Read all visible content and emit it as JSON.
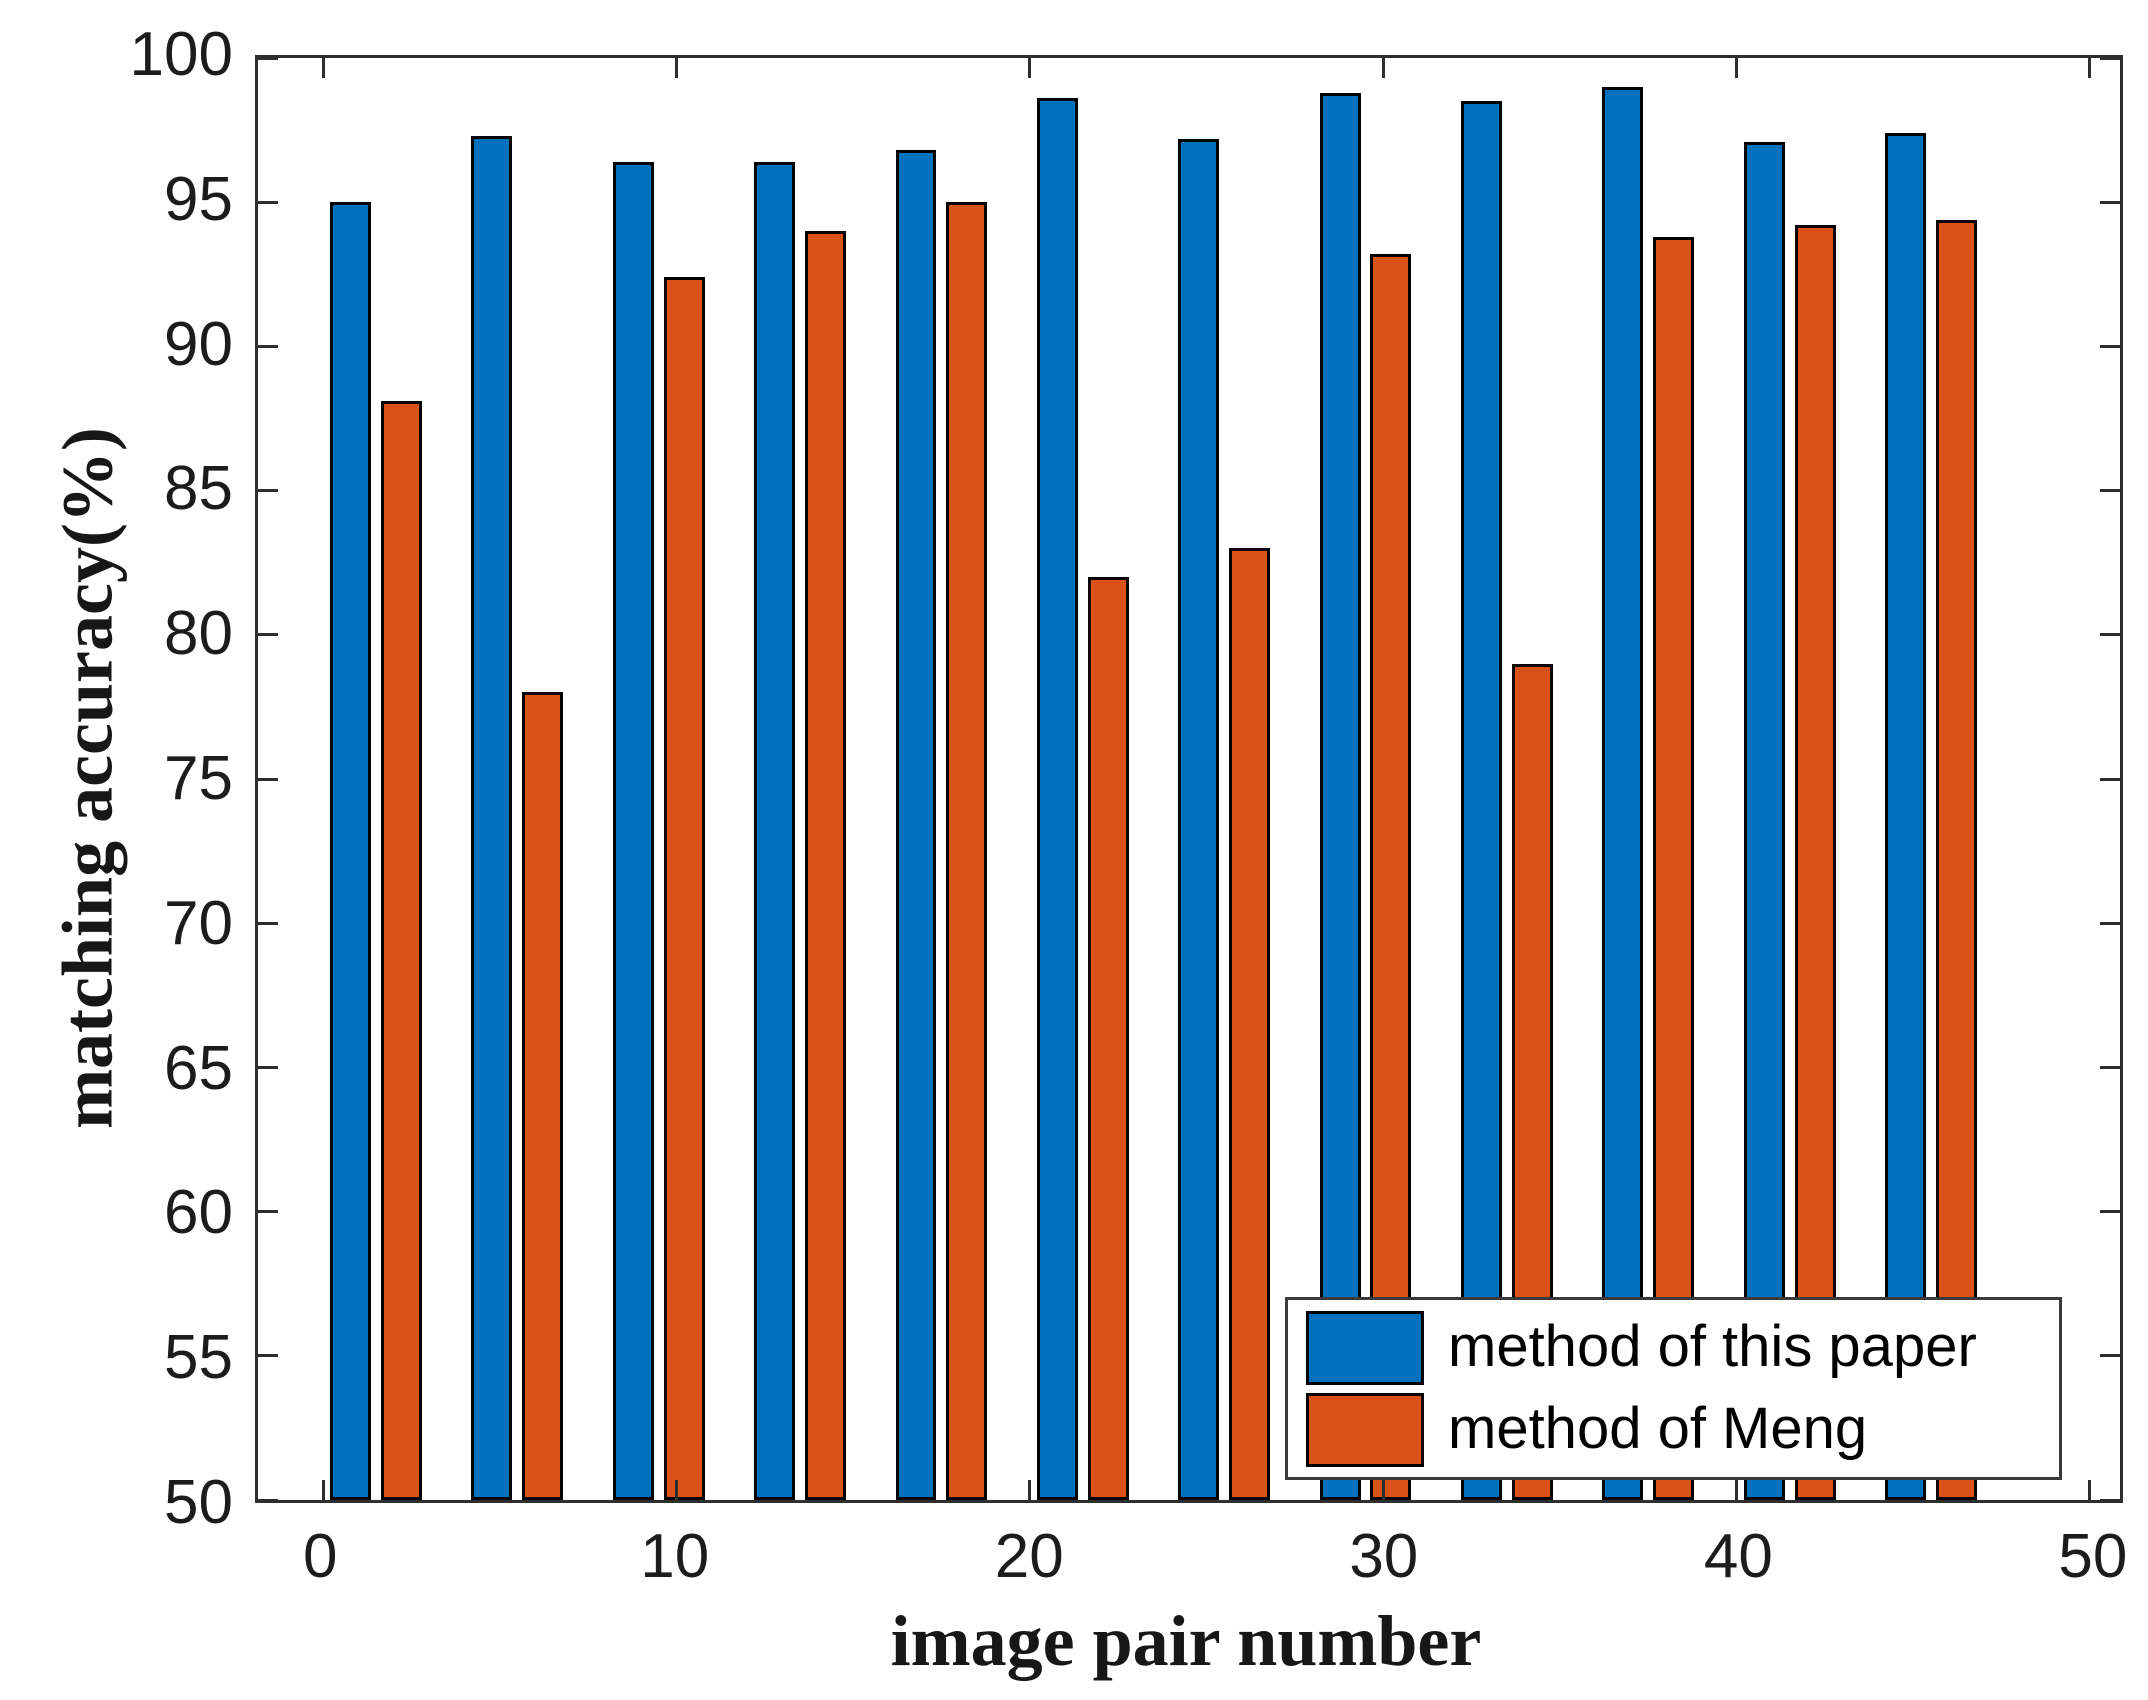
{
  "figure": {
    "background": "#ffffff",
    "axis_color": "#2e2e2e"
  },
  "chart_data": {
    "type": "bar",
    "title": "",
    "xlabel": "image pair number",
    "ylabel": "matching accuracy(%)",
    "x_group_centers": [
      1.5,
      5.5,
      9.5,
      13.5,
      17.5,
      21.5,
      25.5,
      29.5,
      33.5,
      37.5,
      41.5,
      45.5
    ],
    "series": [
      {
        "name": "method of this paper",
        "color": "#0072BD",
        "values": [
          95.0,
          97.3,
          96.4,
          96.4,
          96.8,
          98.6,
          97.2,
          98.8,
          98.5,
          99.0,
          97.1,
          97.4
        ]
      },
      {
        "name": "method of Meng",
        "color": "#D95319",
        "values": [
          88.1,
          78.0,
          92.4,
          94.0,
          95.0,
          82.0,
          83.0,
          93.2,
          79.0,
          93.8,
          94.2,
          94.4
        ]
      }
    ],
    "bar_width_units": 1.16,
    "bar_offset_units": 0.72,
    "edge_color": "#000000",
    "xlim": [
      -1.84,
      50.85
    ],
    "ylim": [
      50,
      100
    ],
    "x_ticks": [
      0,
      10,
      20,
      30,
      40,
      50
    ],
    "y_ticks": [
      50,
      55,
      60,
      65,
      70,
      75,
      80,
      85,
      90,
      95,
      100
    ],
    "grid": false,
    "legend_position": "lower right"
  }
}
